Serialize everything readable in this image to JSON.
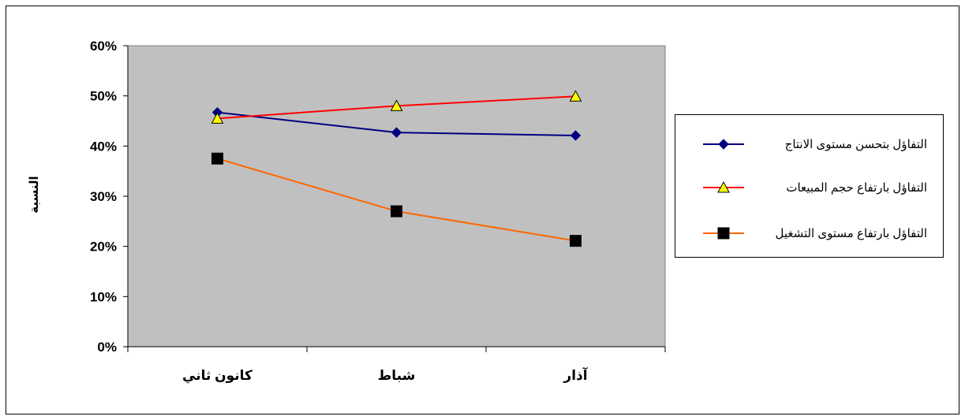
{
  "chart_data": {
    "type": "line",
    "title": "",
    "xlabel": "",
    "ylabel": "النسبة",
    "categories": [
      "كانون ثاني",
      "شباط",
      "آذار"
    ],
    "ylim": [
      0,
      0.6
    ],
    "yticks": [
      0,
      0.1,
      0.2,
      0.3,
      0.4,
      0.5,
      0.6
    ],
    "ytick_labels": [
      "0%",
      "10%",
      "20%",
      "30%",
      "40%",
      "50%",
      "60%"
    ],
    "grid": false,
    "plot_background": "#c0c0c0",
    "legend_position": "right",
    "series": [
      {
        "name": "التفاؤل بتحسن مستوى الانتاج",
        "values": [
          0.467,
          0.427,
          0.421
        ],
        "color": "#000080",
        "marker": "diamond",
        "marker_fill": "#000080"
      },
      {
        "name": "التفاؤل بارتفاع حجم المبيعات",
        "values": [
          0.455,
          0.48,
          0.499
        ],
        "color": "#ff0000",
        "marker": "triangle",
        "marker_fill": "#ffff00"
      },
      {
        "name": "التفاؤل بارتفاع مستوى التشغيل",
        "values": [
          0.375,
          0.27,
          0.211
        ],
        "color": "#ff6600",
        "marker": "square",
        "marker_fill": "#000000"
      }
    ]
  }
}
